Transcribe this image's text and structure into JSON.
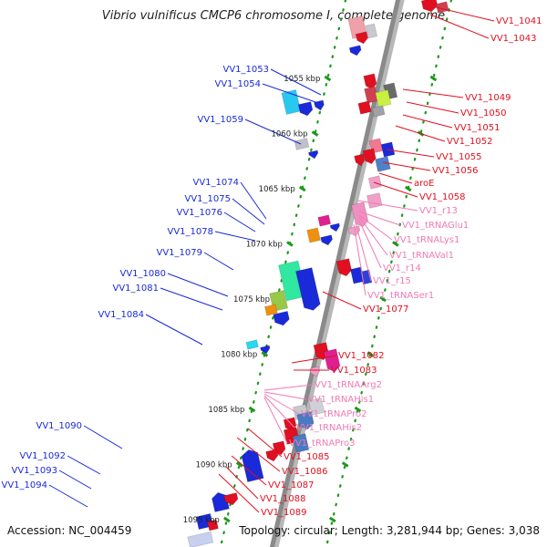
{
  "title": "Vibrio vulnificus CMCP6 chromosome I, complete genome",
  "accession": "Accession: NC_004459",
  "topology": "Topology: circular; Length: 3,281,944 bp; Genes: 3,038",
  "colors": {
    "left_label": "#1a2ad8",
    "right_label": "#e01020",
    "rna_label": "#f07ab4",
    "backbone": "#8c8c8c",
    "tick": "#1a9a1a"
  },
  "kbp_marks": [
    {
      "label": "1055 kbp",
      "kbp": 1055
    },
    {
      "label": "1060 kbp",
      "kbp": 1060
    },
    {
      "label": "1065 kbp",
      "kbp": 1065
    },
    {
      "label": "1070 kbp",
      "kbp": 1070
    },
    {
      "label": "1075 kbp",
      "kbp": 1075
    },
    {
      "label": "1080 kbp",
      "kbp": 1080
    },
    {
      "label": "1085 kbp",
      "kbp": 1085
    },
    {
      "label": "1090 kbp",
      "kbp": 1090
    },
    {
      "label": "1095 kbp",
      "kbp": 1095
    }
  ],
  "left_labels": [
    "VV1_1053",
    "VV1_1054",
    "VV1_1059",
    "VV1_1074",
    "VV1_1075",
    "VV1_1076",
    "VV1_1078",
    "VV1_1079",
    "VV1_1080",
    "VV1_1081",
    "VV1_1084",
    "VV1_1090",
    "VV1_1092",
    "VV1_1093",
    "VV1_1094"
  ],
  "right_labels": [
    "VV1_1041",
    "VV1_1043",
    "VV1_1049",
    "VV1_1050",
    "VV1_1051",
    "VV1_1052",
    "VV1_1055",
    "VV1_1056",
    "aroE",
    "VV1_1058",
    "VV1_1077",
    "VV1_1082",
    "VV1_1083",
    "VV1_1085",
    "VV1_1086",
    "VV1_1087",
    "VV1_1088",
    "VV1_1089"
  ],
  "rna_labels": [
    "VV1_r13",
    "VV1_tRNAGlu1",
    "VV1_tRNALys1",
    "VV1_tRNAVal1",
    "VV1_r14",
    "VV1_r15",
    "VV1_tRNASer1",
    "VV1_tRNAArg2",
    "VV1_tRNAHis1",
    "VV1_tRNAPro2",
    "VV1_tRNAHis2",
    "VV1_tRNAPro3"
  ]
}
